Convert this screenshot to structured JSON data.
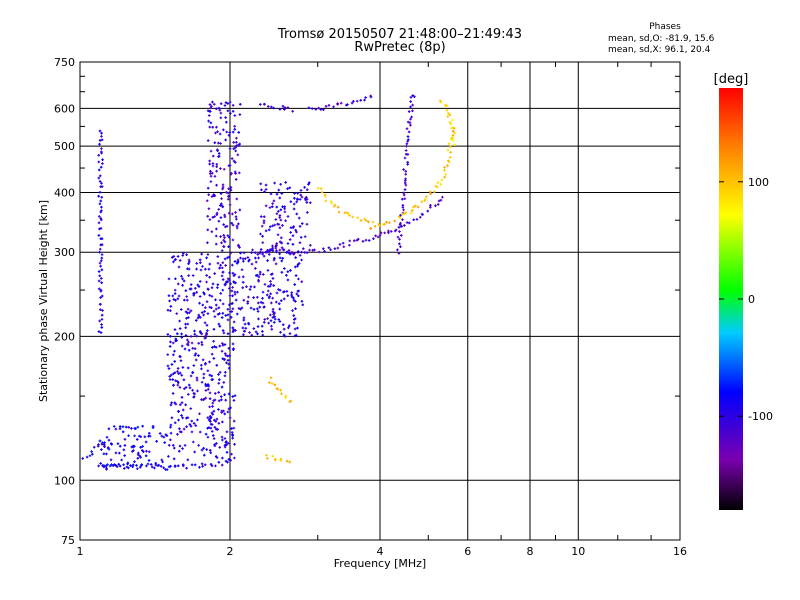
{
  "chart_data": {
    "type": "scatter",
    "title_line1": "Tromsø 20150507 21:48:00–21:49:43",
    "title_line2": "RwPretec (8p)",
    "xlabel": "Frequency [MHz]",
    "ylabel": "Stationary phase Virtual Height [km]",
    "x_scale": "log",
    "y_scale": "log",
    "xlim": [
      1,
      16
    ],
    "ylim": [
      75,
      750
    ],
    "x_ticks": [
      1,
      2,
      4,
      6,
      8,
      10,
      16
    ],
    "y_ticks": [
      75,
      100,
      200,
      300,
      400,
      500,
      600,
      750
    ],
    "colorbar": {
      "label": "[deg]",
      "ticks": [
        100,
        0,
        -100
      ],
      "range": [
        -180,
        180
      ],
      "colormap": [
        "#000000",
        "#7a00b0",
        "#0000ff",
        "#00ccff",
        "#00ff00",
        "#ffff00",
        "#ff8000",
        "#ff0000"
      ]
    },
    "stats": {
      "heading": "Phases",
      "line_o": "mean, sd,O: -81.9, 15.6",
      "line_x": "mean, sd,X:  96.1, 20.4"
    },
    "traces": [
      {
        "x": [
          1.1,
          1.2,
          1.3,
          1.4,
          1.5,
          1.6,
          1.7,
          1.8,
          1.9,
          2.0,
          2.05
        ],
        "y": [
          108,
          107,
          107,
          107,
          107,
          107,
          107,
          108,
          108,
          110,
          112
        ],
        "phase": -95
      },
      {
        "x": [
          1.02,
          1.05,
          1.08,
          1.1,
          1.12,
          1.15
        ],
        "y": [
          112,
          114,
          118,
          122,
          118,
          115
        ],
        "phase": -90
      },
      {
        "x": [
          2.3,
          2.4,
          2.5,
          2.6,
          2.7
        ],
        "y": [
          612,
          608,
          602,
          598,
          596
        ],
        "phase": -110
      },
      {
        "x": [
          2.9,
          3.1,
          3.3,
          3.6,
          3.9
        ],
        "y": [
          598,
          601,
          608,
          622,
          642
        ],
        "phase": -115
      },
      {
        "x": [
          2.2,
          2.5,
          2.8,
          3.1,
          3.4,
          3.7,
          4.0,
          4.3,
          4.6,
          4.9,
          5.2,
          5.4
        ],
        "y": [
          302,
          301,
          300,
          303,
          312,
          318,
          325,
          335,
          348,
          362,
          380,
          395
        ],
        "phase": -115
      },
      {
        "x": [
          4.35,
          4.4,
          4.45,
          4.5,
          4.55,
          4.6,
          4.65,
          4.7
        ],
        "y": [
          300,
          340,
          390,
          450,
          520,
          580,
          630,
          650
        ],
        "phase": -110
      },
      {
        "x": [
          3.0,
          3.1,
          3.3,
          3.5,
          3.7,
          3.9
        ],
        "y": [
          410,
          390,
          370,
          355,
          350,
          345
        ],
        "phase": 100
      },
      {
        "x": [
          3.8,
          4.1,
          4.4,
          4.7,
          5.0,
          5.3,
          5.5,
          5.6
        ],
        "y": [
          338,
          345,
          355,
          370,
          390,
          420,
          470,
          560
        ],
        "phase": 100
      },
      {
        "x": [
          5.3,
          5.4,
          5.5,
          5.6,
          5.65
        ],
        "y": [
          620,
          610,
          580,
          540,
          500
        ],
        "phase": 90
      },
      {
        "x": [
          2.4,
          2.5,
          2.6,
          2.65
        ],
        "y": [
          163,
          155,
          148,
          144
        ],
        "phase": 100
      },
      {
        "x": [
          2.35,
          2.45,
          2.55,
          2.65
        ],
        "y": [
          112,
          111,
          110,
          110
        ],
        "phase": 100
      },
      {
        "x": [
          1.1,
          1.1,
          1.1,
          1.1,
          1.1,
          1.1
        ],
        "y": [
          540,
          450,
          380,
          300,
          250,
          200
        ],
        "phase": -100
      }
    ],
    "clouds": [
      {
        "x": [
          1.5,
          2.05
        ],
        "y": [
          110,
          300
        ],
        "phase": -100
      },
      {
        "x": [
          1.8,
          2.1
        ],
        "y": [
          300,
          620
        ],
        "phase": -110
      },
      {
        "x": [
          2.0,
          2.8
        ],
        "y": [
          200,
          300
        ],
        "phase": -100
      },
      {
        "x": [
          2.3,
          2.9
        ],
        "y": [
          300,
          420
        ],
        "phase": -105
      },
      {
        "x": [
          1.1,
          1.5
        ],
        "y": [
          105,
          130
        ],
        "phase": -90
      }
    ]
  }
}
